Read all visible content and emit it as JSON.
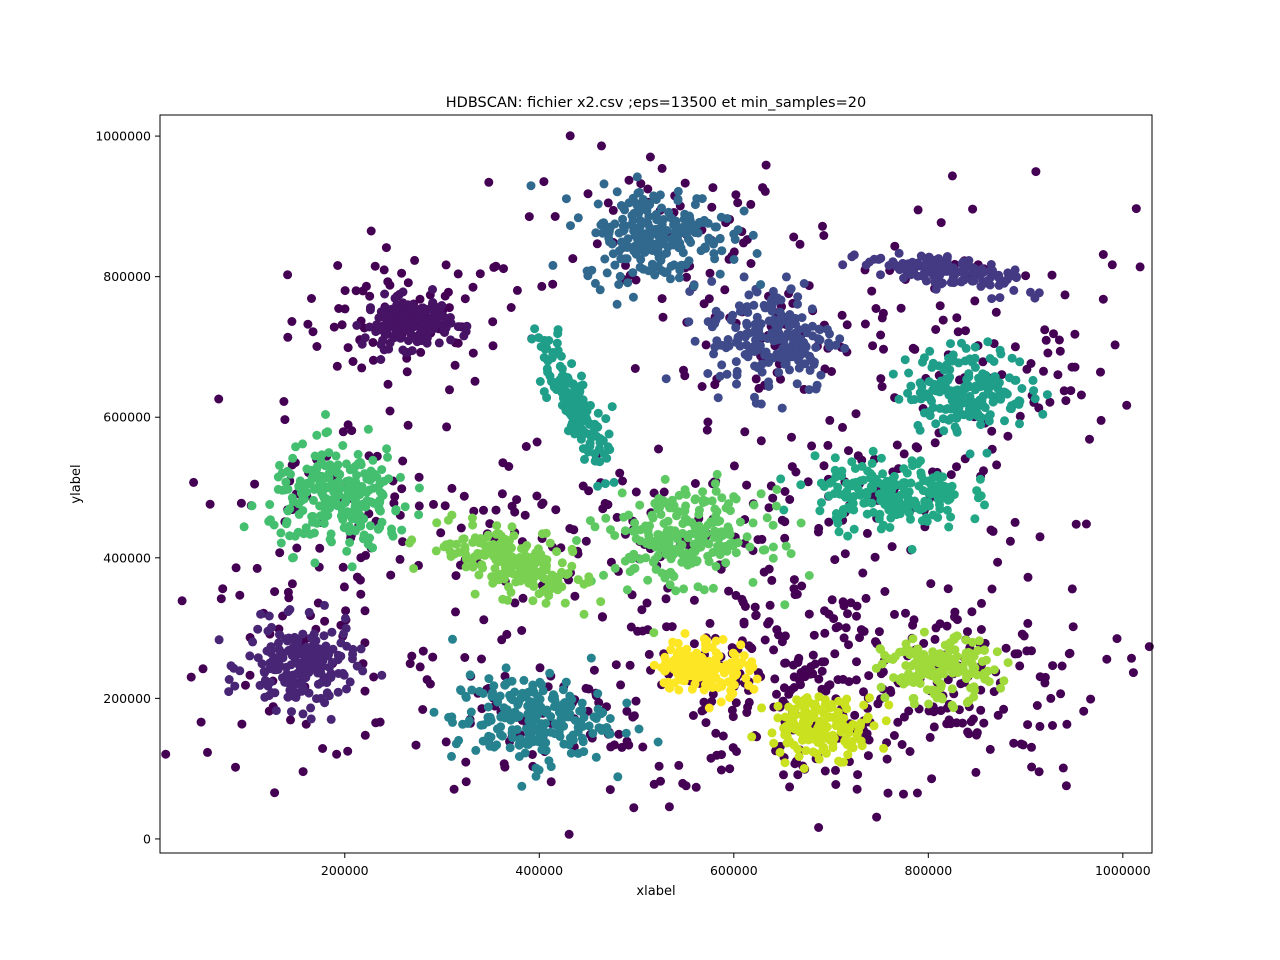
{
  "chart_data": {
    "type": "scatter",
    "title": "HDBSCAN: fichier x2.csv ;eps=13500 et min_samples=20",
    "xlabel": "xlabel",
    "ylabel": "ylabel",
    "xlim": [
      10000,
      1030000
    ],
    "ylim": [
      -20000,
      1030000
    ],
    "xticks": [
      200000,
      400000,
      600000,
      800000,
      1000000
    ],
    "yticks": [
      0,
      200000,
      400000,
      600000,
      800000,
      1000000
    ],
    "xtick_labels": [
      "200000",
      "400000",
      "600000",
      "800000",
      "1000000"
    ],
    "ytick_labels": [
      "0",
      "200000",
      "400000",
      "600000",
      "800000",
      "1000000"
    ],
    "grid": false,
    "legend": "none",
    "colormap": "viridis",
    "noise_color": "#440154",
    "clusters": [
      {
        "id": 0,
        "cx": 265000,
        "cy": 735000,
        "sx": 22000,
        "sy": 18000,
        "n": 160,
        "rot": 0,
        "color": "#471365"
      },
      {
        "id": 1,
        "cx": 155000,
        "cy": 245000,
        "sx": 28000,
        "sy": 30000,
        "n": 190,
        "rot": 0,
        "color": "#482575"
      },
      {
        "id": 2,
        "cx": 810000,
        "cy": 808000,
        "sx": 38000,
        "sy": 11000,
        "n": 130,
        "rot": -15,
        "color": "#443983"
      },
      {
        "id": 3,
        "cx": 640000,
        "cy": 715000,
        "sx": 33000,
        "sy": 40000,
        "n": 200,
        "rot": 0,
        "color": "#3e4a89"
      },
      {
        "id": 4,
        "cx": 520000,
        "cy": 860000,
        "sx": 38000,
        "sy": 33000,
        "n": 230,
        "rot": 0,
        "color": "#31688e"
      },
      {
        "id": 5,
        "cx": 390000,
        "cy": 170000,
        "sx": 40000,
        "sy": 32000,
        "n": 220,
        "rot": 0,
        "color": "#26828e"
      },
      {
        "id": 6,
        "cx": 435000,
        "cy": 620000,
        "sx": 50000,
        "sy": 10000,
        "n": 150,
        "rot": -70,
        "color": "#1f9e89"
      },
      {
        "id": 7,
        "cx": 840000,
        "cy": 640000,
        "sx": 32000,
        "sy": 30000,
        "n": 190,
        "rot": 0,
        "color": "#1f9e89"
      },
      {
        "id": 8,
        "cx": 760000,
        "cy": 490000,
        "sx": 38000,
        "sy": 25000,
        "n": 200,
        "rot": 0,
        "color": "#22a884"
      },
      {
        "id": 9,
        "cx": 195000,
        "cy": 485000,
        "sx": 36000,
        "sy": 36000,
        "n": 250,
        "rot": 0,
        "color": "#44bf70"
      },
      {
        "id": 10,
        "cx": 550000,
        "cy": 430000,
        "sx": 40000,
        "sy": 32000,
        "n": 240,
        "rot": 0,
        "color": "#5ec962"
      },
      {
        "id": 11,
        "cx": 375000,
        "cy": 390000,
        "sx": 40000,
        "sy": 20000,
        "n": 220,
        "rot": -28,
        "color": "#7ad151"
      },
      {
        "id": 12,
        "cx": 810000,
        "cy": 240000,
        "sx": 28000,
        "sy": 22000,
        "n": 160,
        "rot": 0,
        "color": "#9fda3a"
      },
      {
        "id": 13,
        "cx": 690000,
        "cy": 160000,
        "sx": 28000,
        "sy": 22000,
        "n": 160,
        "rot": 0,
        "color": "#cae11f"
      },
      {
        "id": 14,
        "cx": 570000,
        "cy": 245000,
        "sx": 24000,
        "sy": 20000,
        "n": 150,
        "rot": 0,
        "color": "#fde725"
      }
    ],
    "noise_blobs": [
      {
        "cx": 265000,
        "cy": 740000,
        "sx": 60000,
        "sy": 50000,
        "n": 80
      },
      {
        "cx": 520000,
        "cy": 870000,
        "sx": 75000,
        "sy": 60000,
        "n": 60
      },
      {
        "cx": 640000,
        "cy": 720000,
        "sx": 65000,
        "sy": 60000,
        "n": 55
      },
      {
        "cx": 830000,
        "cy": 740000,
        "sx": 90000,
        "sy": 90000,
        "n": 80
      },
      {
        "cx": 155000,
        "cy": 250000,
        "sx": 70000,
        "sy": 70000,
        "n": 60
      },
      {
        "cx": 400000,
        "cy": 170000,
        "sx": 80000,
        "sy": 60000,
        "n": 80
      },
      {
        "cx": 680000,
        "cy": 210000,
        "sx": 110000,
        "sy": 80000,
        "n": 260
      },
      {
        "cx": 820000,
        "cy": 230000,
        "sx": 80000,
        "sy": 70000,
        "n": 110
      },
      {
        "cx": 540000,
        "cy": 440000,
        "sx": 85000,
        "sy": 65000,
        "n": 90
      },
      {
        "cx": 780000,
        "cy": 500000,
        "sx": 80000,
        "sy": 55000,
        "n": 70
      },
      {
        "cx": 190000,
        "cy": 480000,
        "sx": 75000,
        "sy": 65000,
        "n": 70
      },
      {
        "cx": 380000,
        "cy": 400000,
        "sx": 75000,
        "sy": 55000,
        "n": 50
      },
      {
        "cx": 950000,
        "cy": 650000,
        "sx": 30000,
        "sy": 40000,
        "n": 20
      }
    ]
  }
}
